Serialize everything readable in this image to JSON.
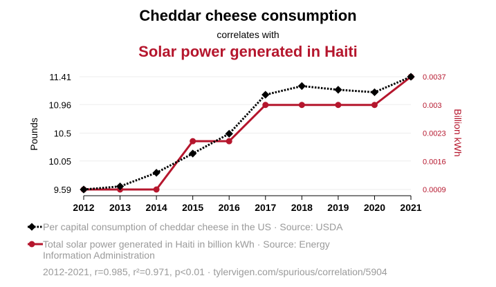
{
  "header": {
    "title": "Cheddar cheese consumption",
    "correlates": "correlates with",
    "title2": "Solar power generated in Haiti"
  },
  "legend": {
    "series1_label": "Per capital consumption of cheddar cheese in the US · Source: USDA",
    "series2_label": "Total solar power generated in Haiti in billion kWh · Source: Energy Information Administration"
  },
  "footer": {
    "text": "2012-2021, r=0.985, r²=0.971, p<0.01 · tylervigen.com/spurious/correlation/5904"
  },
  "colors": {
    "series1": "#000000",
    "series2": "#b5162d",
    "grid": "#eeeeee"
  },
  "chart_data": {
    "type": "line",
    "title": "Cheddar cheese consumption",
    "subtitle": "Solar power generated in Haiti",
    "x": [
      "2012",
      "2013",
      "2014",
      "2015",
      "2016",
      "2017",
      "2018",
      "2019",
      "2020",
      "2021"
    ],
    "ylabel_left": "Pounds",
    "ylabel_right": "Billion kWh",
    "y_left_ticks": [
      "9.59",
      "10.05",
      "10.5",
      "10.96",
      "11.41"
    ],
    "y_left_lim": [
      9.59,
      11.41
    ],
    "y_right_ticks": [
      "0.0009",
      "0.0016",
      "0.0023",
      "0.003",
      "0.0037"
    ],
    "y_right_lim": [
      0.0009,
      0.0037
    ],
    "grid": true,
    "series": [
      {
        "name": "Per capital consumption of cheddar cheese in the US",
        "axis": "left",
        "style": "dotted",
        "marker": "diamond",
        "values": [
          9.59,
          9.64,
          9.86,
          10.17,
          10.49,
          11.12,
          11.26,
          11.2,
          11.16,
          11.41
        ]
      },
      {
        "name": "Total solar power generated in Haiti in billion kWh",
        "axis": "right",
        "style": "solid",
        "marker": "circle",
        "values": [
          0.0009,
          0.0009,
          0.0009,
          0.0021,
          0.0021,
          0.003,
          0.003,
          0.003,
          0.003,
          0.0037
        ]
      }
    ]
  }
}
